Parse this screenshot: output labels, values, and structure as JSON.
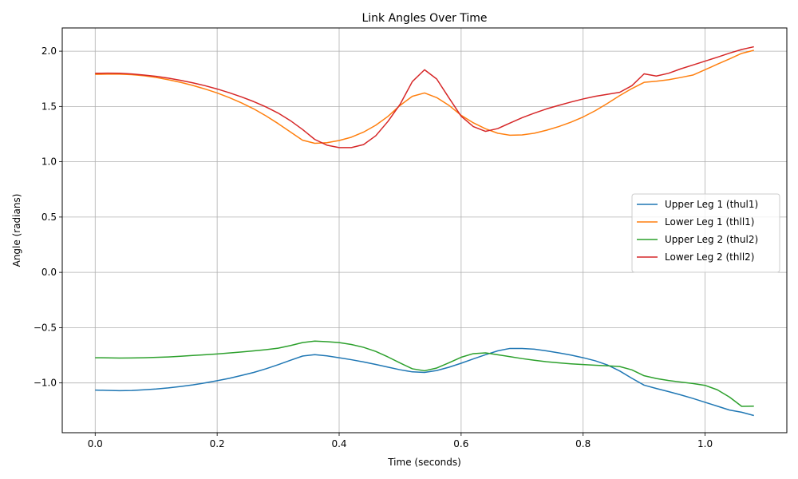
{
  "chart_data": {
    "type": "line",
    "title": "Link Angles Over Time",
    "xlabel": "Time (seconds)",
    "ylabel": "Angle (radians)",
    "xlim": [
      -0.054,
      1.134
    ],
    "ylim": [
      -1.45,
      2.21
    ],
    "xticks": [
      0.0,
      0.2,
      0.4,
      0.6,
      0.8,
      1.0
    ],
    "xtick_labels": [
      "0.0",
      "0.2",
      "0.4",
      "0.6",
      "0.8",
      "1.0"
    ],
    "yticks": [
      -1.0,
      -0.5,
      0.0,
      0.5,
      1.0,
      1.5,
      2.0
    ],
    "ytick_labels": [
      "−1.0",
      "−0.5",
      "0.0",
      "0.5",
      "1.0",
      "1.5",
      "2.0"
    ],
    "grid": true,
    "legend_position": "center-right",
    "x": [
      0.0,
      0.02,
      0.04,
      0.06,
      0.08,
      0.1,
      0.12,
      0.14,
      0.16,
      0.18,
      0.2,
      0.22,
      0.24,
      0.26,
      0.28,
      0.3,
      0.32,
      0.34,
      0.36,
      0.38,
      0.4,
      0.42,
      0.44,
      0.46,
      0.48,
      0.5,
      0.52,
      0.54,
      0.56,
      0.58,
      0.6,
      0.62,
      0.64,
      0.66,
      0.68,
      0.7,
      0.72,
      0.74,
      0.76,
      0.78,
      0.8,
      0.82,
      0.84,
      0.86,
      0.88,
      0.9,
      0.92,
      0.94,
      0.96,
      0.98,
      1.0,
      1.02,
      1.04,
      1.06,
      1.08
    ],
    "series": [
      {
        "name": "Upper Leg 1 (thul1)",
        "color": "#1f77b4",
        "values": [
          -1.065,
          -1.067,
          -1.07,
          -1.068,
          -1.062,
          -1.055,
          -1.045,
          -1.032,
          -1.018,
          -1.0,
          -0.98,
          -0.958,
          -0.932,
          -0.905,
          -0.872,
          -0.835,
          -0.795,
          -0.757,
          -0.744,
          -0.755,
          -0.772,
          -0.79,
          -0.81,
          -0.833,
          -0.857,
          -0.881,
          -0.9,
          -0.905,
          -0.888,
          -0.858,
          -0.822,
          -0.783,
          -0.745,
          -0.71,
          -0.688,
          -0.688,
          -0.695,
          -0.71,
          -0.728,
          -0.748,
          -0.772,
          -0.8,
          -0.838,
          -0.892,
          -0.958,
          -1.02,
          -1.05,
          -1.078,
          -1.108,
          -1.14,
          -1.175,
          -1.21,
          -1.245,
          -1.265,
          -1.295
        ]
      },
      {
        "name": "Lower Leg 1 (thll1)",
        "color": "#ff7f0e",
        "values": [
          1.79,
          1.792,
          1.792,
          1.788,
          1.778,
          1.762,
          1.742,
          1.718,
          1.69,
          1.658,
          1.622,
          1.58,
          1.532,
          1.478,
          1.415,
          1.345,
          1.27,
          1.195,
          1.167,
          1.172,
          1.192,
          1.222,
          1.268,
          1.33,
          1.41,
          1.51,
          1.592,
          1.622,
          1.58,
          1.51,
          1.42,
          1.352,
          1.298,
          1.258,
          1.24,
          1.243,
          1.258,
          1.285,
          1.318,
          1.358,
          1.405,
          1.462,
          1.528,
          1.598,
          1.662,
          1.718,
          1.728,
          1.742,
          1.762,
          1.784,
          1.832,
          1.882,
          1.93,
          1.98,
          2.008
        ]
      },
      {
        "name": "Upper Leg 2 (thul2)",
        "color": "#2ca02c",
        "values": [
          -0.772,
          -0.773,
          -0.775,
          -0.774,
          -0.772,
          -0.769,
          -0.765,
          -0.759,
          -0.752,
          -0.745,
          -0.738,
          -0.729,
          -0.72,
          -0.71,
          -0.699,
          -0.686,
          -0.662,
          -0.635,
          -0.622,
          -0.627,
          -0.635,
          -0.652,
          -0.678,
          -0.715,
          -0.765,
          -0.82,
          -0.872,
          -0.89,
          -0.865,
          -0.818,
          -0.768,
          -0.735,
          -0.728,
          -0.745,
          -0.762,
          -0.78,
          -0.795,
          -0.808,
          -0.818,
          -0.827,
          -0.834,
          -0.84,
          -0.845,
          -0.852,
          -0.882,
          -0.935,
          -0.96,
          -0.978,
          -0.992,
          -1.005,
          -1.022,
          -1.062,
          -1.128,
          -1.212,
          -1.21
        ]
      },
      {
        "name": "Lower Leg 2 (thll2)",
        "color": "#d62728",
        "values": [
          1.8,
          1.801,
          1.8,
          1.794,
          1.784,
          1.772,
          1.756,
          1.736,
          1.714,
          1.688,
          1.658,
          1.624,
          1.586,
          1.544,
          1.496,
          1.44,
          1.372,
          1.292,
          1.202,
          1.15,
          1.128,
          1.128,
          1.155,
          1.235,
          1.365,
          1.52,
          1.725,
          1.832,
          1.748,
          1.578,
          1.412,
          1.318,
          1.275,
          1.3,
          1.35,
          1.398,
          1.44,
          1.478,
          1.51,
          1.54,
          1.568,
          1.592,
          1.61,
          1.628,
          1.688,
          1.795,
          1.775,
          1.8,
          1.84,
          1.875,
          1.91,
          1.945,
          1.982,
          2.015,
          2.04
        ]
      }
    ]
  }
}
